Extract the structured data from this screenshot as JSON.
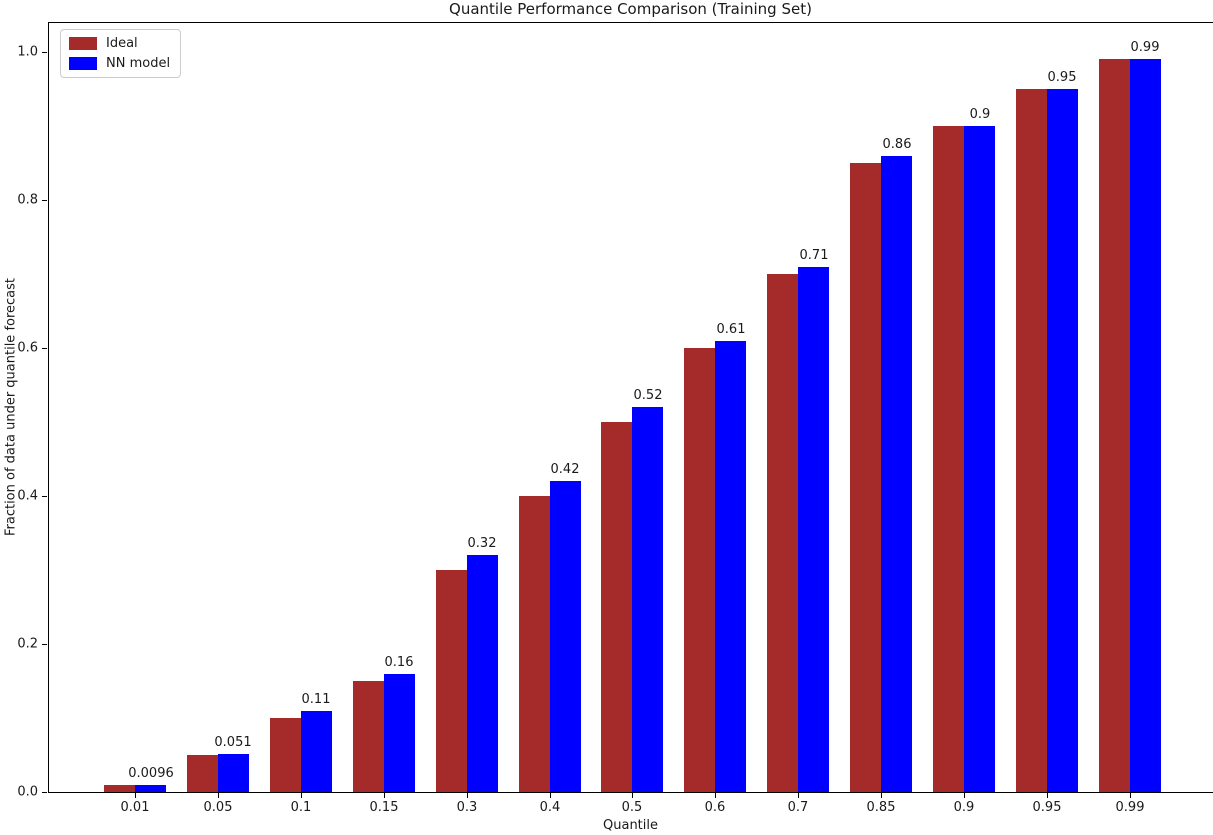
{
  "chart_data": {
    "type": "bar",
    "title": "Quantile Performance Comparison (Training Set)",
    "xlabel": "Quantile",
    "ylabel": "Fraction of data under quantile forecast",
    "categories": [
      "0.01",
      "0.05",
      "0.1",
      "0.15",
      "0.3",
      "0.4",
      "0.5",
      "0.6",
      "0.7",
      "0.85",
      "0.9",
      "0.95",
      "0.99"
    ],
    "series": [
      {
        "name": "Ideal",
        "color": "#A52A2A",
        "values": [
          0.01,
          0.05,
          0.1,
          0.15,
          0.3,
          0.4,
          0.5,
          0.6,
          0.7,
          0.85,
          0.9,
          0.95,
          0.99
        ]
      },
      {
        "name": "NN model",
        "color": "#0000FF",
        "values": [
          0.0096,
          0.051,
          0.11,
          0.16,
          0.32,
          0.42,
          0.52,
          0.61,
          0.71,
          0.86,
          0.9,
          0.95,
          0.99
        ]
      }
    ],
    "bar_labels": [
      "0.0096",
      "0.051",
      "0.11",
      "0.16",
      "0.32",
      "0.42",
      "0.52",
      "0.61",
      "0.71",
      "0.86",
      "0.9",
      "0.95",
      "0.99"
    ],
    "yticks": [
      "0.0",
      "0.2",
      "0.4",
      "0.6",
      "0.8",
      "1.0"
    ],
    "ylim": [
      0.0,
      1.04
    ],
    "xlim_note": "right spine cropped at image edge",
    "legend_position": "upper left",
    "grid": false,
    "background_color": "#ffffff",
    "axis_color": "#000000"
  }
}
